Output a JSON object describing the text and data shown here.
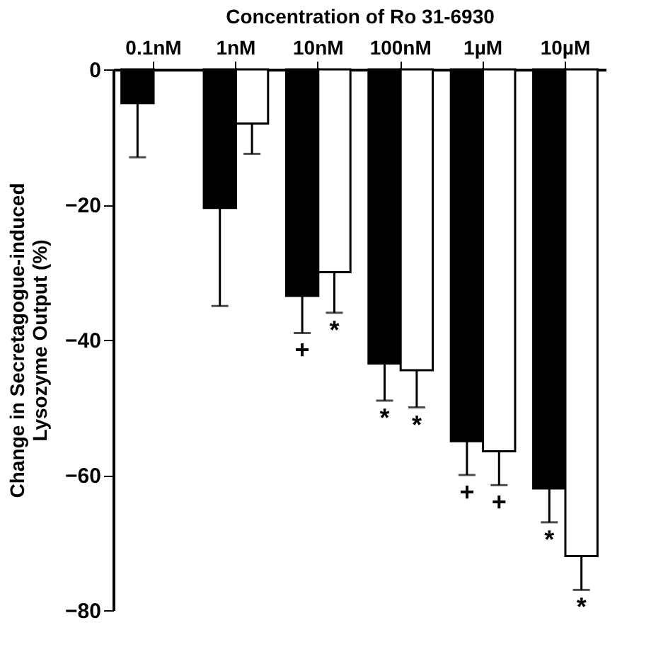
{
  "chart_data": {
    "type": "bar",
    "xlabel": "Concentration of Ro 31-6930",
    "ylabel": "Change in Secretagogue-induced\nLysozyme Output (%)",
    "categories": [
      "0.1nM",
      "1nM",
      "10nM",
      "100nM",
      "1µM",
      "10µM"
    ],
    "series": [
      {
        "color": "#000000",
        "values": [
          -5,
          -20.5,
          -33.5,
          -43.5,
          -55,
          -62
        ],
        "errors": [
          [
            -13,
            -5
          ],
          [
            -35,
            -20.5
          ],
          [
            -39,
            -33.5
          ],
          [
            -49,
            -43.5
          ],
          [
            -60,
            -55
          ],
          [
            -67,
            -62
          ]
        ]
      },
      {
        "color": "#ffffff",
        "values": [
          null,
          -8,
          -30,
          -44.5,
          -56.5,
          -72
        ],
        "errors": [
          null,
          [
            -12.5,
            -8
          ],
          [
            -36,
            -30
          ],
          [
            -50,
            -44.5
          ],
          [
            -61.5,
            -56.5
          ],
          [
            -77,
            -72
          ]
        ]
      }
    ],
    "ylim": [
      -80,
      0
    ],
    "yticks": [
      0,
      -20,
      -40,
      -60,
      -80
    ],
    "grid": false,
    "legend": false,
    "annotations": [
      "+",
      "*",
      "*",
      "*",
      "+",
      "+",
      "*",
      "*"
    ]
  }
}
